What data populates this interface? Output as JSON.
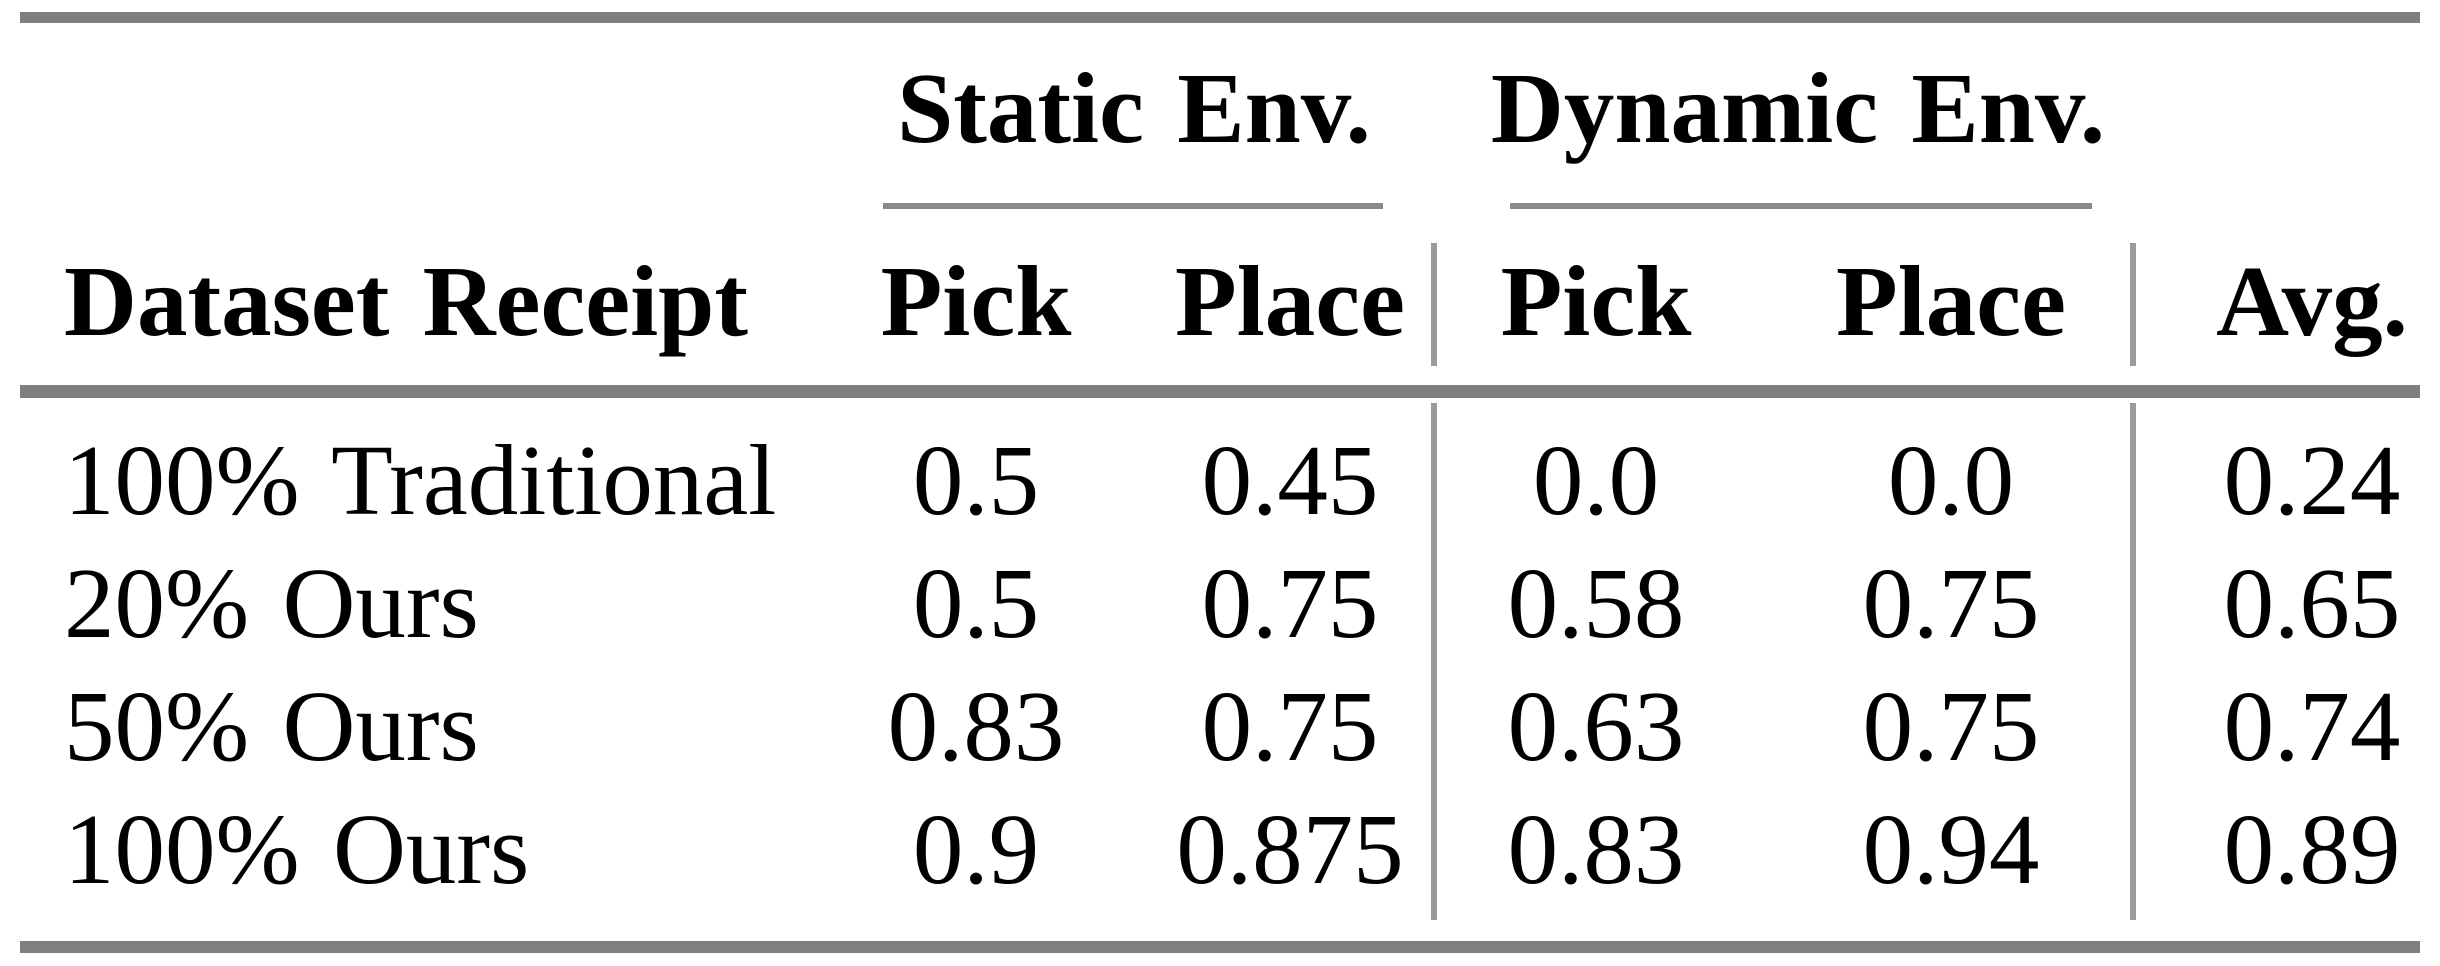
{
  "table": {
    "group_headers": [
      {
        "label": "Static Env."
      },
      {
        "label": "Dynamic Env."
      }
    ],
    "column_headers": {
      "label": "Dataset Receipt",
      "static_pick": "Pick",
      "static_place": "Place",
      "dynamic_pick": "Pick",
      "dynamic_place": "Place",
      "avg": "Avg."
    },
    "rows": [
      {
        "label": "100% Traditional",
        "static_pick": "0.5",
        "static_place": "0.45",
        "dynamic_pick": "0.0",
        "dynamic_place": "0.0",
        "avg": "0.24"
      },
      {
        "label": "20% Ours",
        "static_pick": "0.5",
        "static_place": "0.75",
        "dynamic_pick": "0.58",
        "dynamic_place": "0.75",
        "avg": "0.65"
      },
      {
        "label": "50% Ours",
        "static_pick": "0.83",
        "static_place": "0.75",
        "dynamic_pick": "0.63",
        "dynamic_place": "0.75",
        "avg": "0.74"
      },
      {
        "label": "100% Ours",
        "static_pick": "0.9",
        "static_place": "0.875",
        "dynamic_pick": "0.83",
        "dynamic_place": "0.94",
        "avg": "0.89"
      }
    ],
    "colors": {
      "thick_rule": "#7f7f7f",
      "cmid_rule": "#8a8a8a",
      "vertical_rule": "#9b9b9b",
      "text": "#000000",
      "background": "#ffffff"
    }
  }
}
